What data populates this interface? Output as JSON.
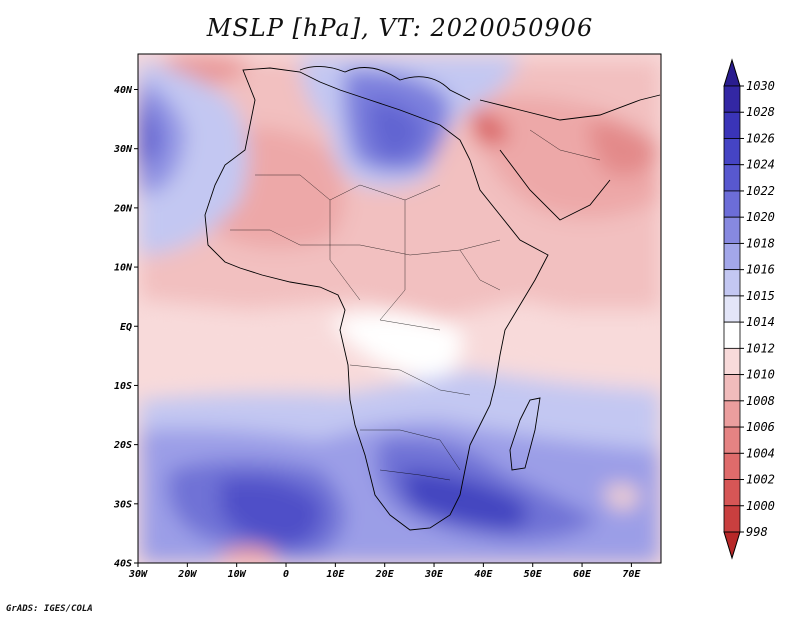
{
  "title": "MSLP [hPa], VT: 2020050906",
  "credit": "GrADS: IGES/COLA",
  "map": {
    "variable": "Mean sea level pressure",
    "units": "hPa",
    "valid_time": "2020050906",
    "lon_range": [
      -30,
      76
    ],
    "lat_range": [
      -40,
      46
    ],
    "x_ticks": [
      "30W",
      "20W",
      "10W",
      "0",
      "10E",
      "20E",
      "30E",
      "40E",
      "50E",
      "60E",
      "70E"
    ],
    "y_ticks": [
      "40N",
      "30N",
      "20N",
      "10N",
      "EQ",
      "10S",
      "20S",
      "30S",
      "40S"
    ]
  },
  "legend": {
    "levels": [
      "1030",
      "1028",
      "1026",
      "1024",
      "1022",
      "1020",
      "1018",
      "1016",
      "1015",
      "1014",
      "1012",
      "1010",
      "1008",
      "1006",
      "1004",
      "1002",
      "1000",
      "998"
    ],
    "colors": [
      "#2a1d8f",
      "#3327a4",
      "#3a34b8",
      "#4544c4",
      "#5858cf",
      "#6c6dd8",
      "#8789e0",
      "#a3a7ea",
      "#c3c7f2",
      "#e3e5f8",
      "#ffffff",
      "#f8dada",
      "#f1bcbc",
      "#eb9e9e",
      "#e58383",
      "#df6b6b",
      "#d65656",
      "#c93f3f",
      "#b72828"
    ]
  }
}
